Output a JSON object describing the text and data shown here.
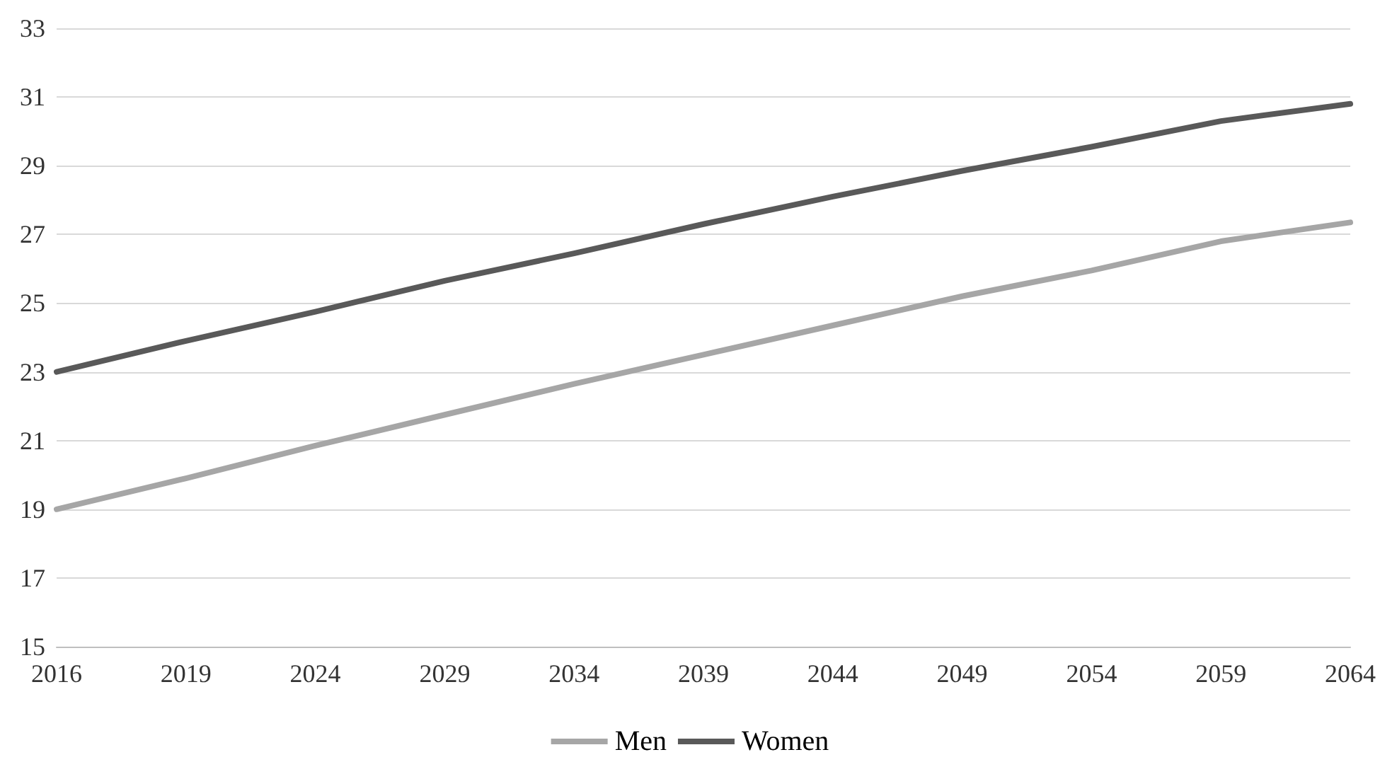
{
  "chart_data": {
    "type": "line",
    "categories": [
      "2016",
      "2019",
      "2024",
      "2029",
      "2034",
      "2039",
      "2044",
      "2049",
      "2054",
      "2059",
      "2064"
    ],
    "series": [
      {
        "name": "Men",
        "color": "#a6a6a6",
        "values": [
          19.0,
          19.9,
          20.85,
          21.75,
          22.65,
          23.5,
          24.35,
          25.2,
          25.95,
          26.8,
          27.35
        ]
      },
      {
        "name": "Women",
        "color": "#595959",
        "values": [
          23.0,
          23.9,
          24.75,
          25.65,
          26.45,
          27.3,
          28.1,
          28.85,
          29.55,
          30.3,
          30.8
        ]
      }
    ],
    "ylim": [
      15,
      33
    ],
    "yticks": [
      15,
      17,
      19,
      21,
      23,
      25,
      27,
      29,
      31,
      33
    ],
    "grid": "y",
    "legend": "bottom",
    "marker": "none",
    "line_style": "solid"
  }
}
